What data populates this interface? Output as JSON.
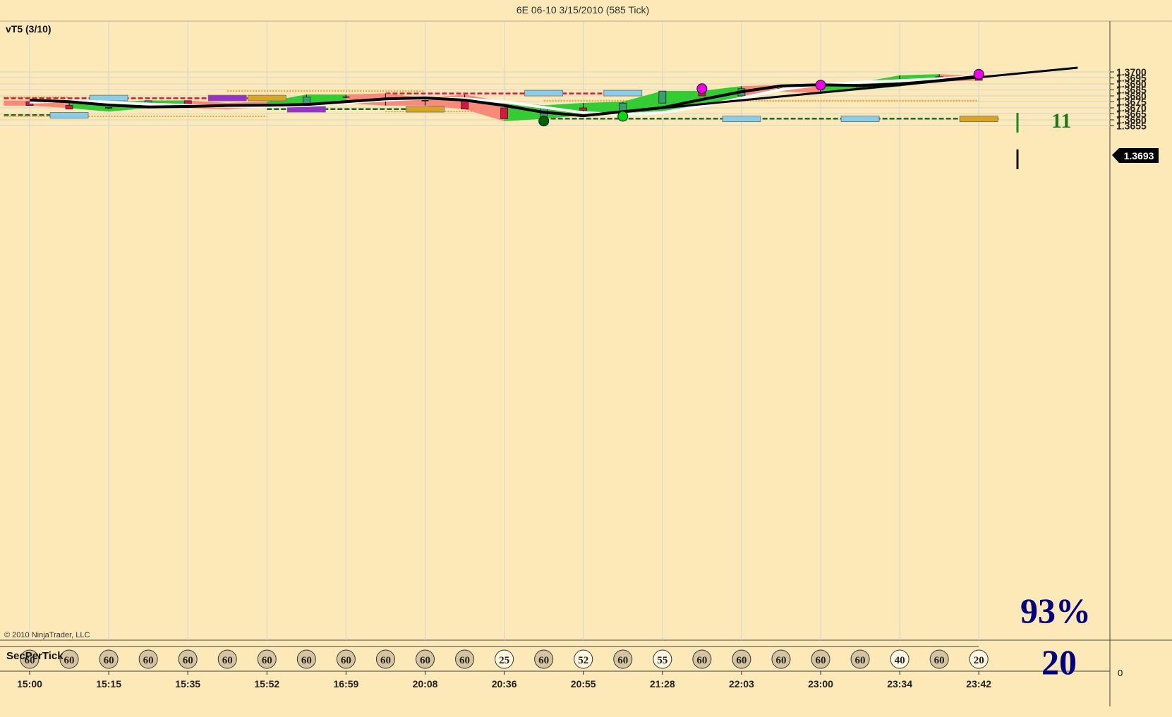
{
  "window": {
    "title": "6E 06-10  3/15/2010 (585 Tick)"
  },
  "panel": {
    "indicator_label": "vT5 (3/10)",
    "copyright": "© 2010 NinjaTrader, LLC",
    "subpanel_label": "SecPerTick",
    "subpanel_zero": "0",
    "last_price": "1.3693",
    "signal_count": "11",
    "percent": "93%",
    "sec_value": "20"
  },
  "colors": {
    "background": "#fde8b8",
    "bull_band": "#33cc33",
    "bear_band": "#fa8a78",
    "up_candle": "#3a9d76",
    "down_candle": "#d8163f",
    "fast_line": "#000000",
    "slow_line": "#ffffff",
    "trend_line": "#000000",
    "orange_level": "#e8a21a",
    "red_level": "#d8163f",
    "green_level": "#1f6b1f",
    "navy_text": "#000080",
    "signal_green": "#006400"
  },
  "chart_data": {
    "type": "candlestick",
    "title": "6E 06-10  3/15/2010 (585 Tick)",
    "price_axis": {
      "ylim": [
        1.36525,
        1.37035
      ],
      "ticks": [
        "1.3655",
        "1.3660",
        "1.3665",
        "1.3670",
        "1.3675",
        "1.3680",
        "1.3685",
        "1.3690",
        "1.3695",
        "1.3700"
      ]
    },
    "x_labels": [
      {
        "bar": 0,
        "label": "15:00"
      },
      {
        "bar": 2,
        "label": "15:15"
      },
      {
        "bar": 4,
        "label": "15:35"
      },
      {
        "bar": 6,
        "label": "15:52"
      },
      {
        "bar": 8,
        "label": "16:59"
      },
      {
        "bar": 10,
        "label": "20:08"
      },
      {
        "bar": 12,
        "label": "20:36"
      },
      {
        "bar": 14,
        "label": "20:55"
      },
      {
        "bar": 16,
        "label": "21:28"
      },
      {
        "bar": 18,
        "label": "22:03"
      },
      {
        "bar": 20,
        "label": "23:00"
      },
      {
        "bar": 22,
        "label": "23:34"
      },
      {
        "bar": 24,
        "label": "23:42"
      }
    ],
    "candles": [
      {
        "o": 1.3675,
        "h": 1.3675,
        "l": 1.3672,
        "c": 1.3672
      },
      {
        "o": 1.3672,
        "h": 1.3675,
        "l": 1.3669,
        "c": 1.3669
      },
      {
        "o": 1.3669,
        "h": 1.367,
        "l": 1.3669,
        "c": 1.367
      },
      {
        "o": 1.367,
        "h": 1.3676,
        "l": 1.367,
        "c": 1.3676
      },
      {
        "o": 1.3676,
        "h": 1.3676,
        "l": 1.3672,
        "c": 1.3672
      },
      {
        "o": 1.3672,
        "h": 1.3672,
        "l": 1.3672,
        "c": 1.3672
      },
      {
        "o": 1.3672,
        "h": 1.3672,
        "l": 1.3672,
        "c": 1.3672
      },
      {
        "o": 1.3672,
        "h": 1.3681,
        "l": 1.3672,
        "c": 1.3679
      },
      {
        "o": 1.3679,
        "h": 1.3681,
        "l": 1.3678,
        "c": 1.3678
      },
      {
        "o": 1.3678,
        "h": 1.3682,
        "l": 1.3672,
        "c": 1.3676
      },
      {
        "o": 1.3676,
        "h": 1.3678,
        "l": 1.3672,
        "c": 1.3676
      },
      {
        "o": 1.3676,
        "h": 1.3681,
        "l": 1.3669,
        "c": 1.3669
      },
      {
        "o": 1.367,
        "h": 1.367,
        "l": 1.3661,
        "c": 1.3661
      },
      {
        "o": 1.3661,
        "h": 1.367,
        "l": 1.3661,
        "c": 1.367
      },
      {
        "o": 1.367,
        "h": 1.3674,
        "l": 1.3664,
        "c": 1.3668
      },
      {
        "o": 1.3665,
        "h": 1.3675,
        "l": 1.3665,
        "c": 1.3674
      },
      {
        "o": 1.3674,
        "h": 1.3684,
        "l": 1.3674,
        "c": 1.3684
      },
      {
        "o": 1.3684,
        "h": 1.3684,
        "l": 1.368,
        "c": 1.368
      },
      {
        "o": 1.368,
        "h": 1.3688,
        "l": 1.3679,
        "c": 1.3686
      },
      {
        "o": 1.3686,
        "h": 1.3689,
        "l": 1.3684,
        "c": 1.3686
      },
      {
        "o": 1.3686,
        "h": 1.3686,
        "l": 1.3682,
        "c": 1.3685
      },
      {
        "o": 1.3686,
        "h": 1.3689,
        "l": 1.3685,
        "c": 1.3689
      },
      {
        "o": 1.3689,
        "h": 1.3697,
        "l": 1.3688,
        "c": 1.3693
      },
      {
        "o": 1.3693,
        "h": 1.3698,
        "l": 1.3692,
        "c": 1.3696
      },
      {
        "o": 1.3696,
        "h": 1.3696,
        "l": 1.3693,
        "c": 1.3693
      }
    ],
    "band": {
      "upper": [
        1.3676,
        1.3674,
        1.3675,
        1.3676,
        1.3676,
        1.3674,
        1.3675,
        1.3681,
        1.3681,
        1.3682,
        1.3678,
        1.3681,
        1.3675,
        1.3672,
        1.3674,
        1.3675,
        1.3684,
        1.3684,
        1.3688,
        1.3689,
        1.369,
        1.3691,
        1.3697,
        1.3698,
        1.3696
      ],
      "lower": [
        1.3672,
        1.367,
        1.3667,
        1.367,
        1.367,
        1.3669,
        1.3671,
        1.3672,
        1.3674,
        1.3672,
        1.3672,
        1.3669,
        1.3659,
        1.3661,
        1.3664,
        1.3664,
        1.3666,
        1.3671,
        1.3679,
        1.3684,
        1.3682,
        1.3685,
        1.3688,
        1.3692,
        1.3693
      ],
      "trend": [
        "bear",
        "bear",
        "bull",
        "bull",
        "bull",
        "bear",
        "bear",
        "bull",
        "bull",
        "bear",
        "bear",
        "bear",
        "bear",
        "bull",
        "bull",
        "bull",
        "bull",
        "bull",
        "bull",
        "bear",
        "bear",
        "bull",
        "bull",
        "bull",
        "bear"
      ]
    },
    "fast_ma": [
      1.36765,
      1.36751,
      1.36723,
      1.36707,
      1.36712,
      1.3672,
      1.36722,
      1.36728,
      1.36752,
      1.36775,
      1.36783,
      1.36765,
      1.3672,
      1.36663,
      1.36635,
      1.36668,
      1.36702,
      1.3677,
      1.36835,
      1.36883,
      1.36893,
      1.36886,
      1.36899,
      1.36927,
      1.36963
    ],
    "slow_ma": [
      1.36747,
      1.36757,
      1.36749,
      1.36732,
      1.3672,
      1.36713,
      1.36711,
      1.36719,
      1.36743,
      1.36765,
      1.3678,
      1.36776,
      1.3675,
      1.36705,
      1.3666,
      1.36644,
      1.36661,
      1.36714,
      1.36782,
      1.36853,
      1.36895,
      1.36913,
      1.36927,
      1.36942,
      1.36963
    ],
    "trend_line": [
      {
        "bar": 14,
        "price": 1.36635
      },
      {
        "bar": 26.5,
        "price": 1.37035
      }
    ],
    "dots": [
      {
        "bar": 13,
        "price": 1.3659,
        "color": "#006400"
      },
      {
        "bar": 15,
        "price": 1.3663,
        "color": "#00dd00"
      },
      {
        "bar": 17,
        "price": 1.3686,
        "color": "#ee00ee"
      },
      {
        "bar": 20,
        "price": 1.3689,
        "color": "#ee00ee"
      },
      {
        "bar": 24,
        "price": 1.3698,
        "color": "#ee00ee"
      }
    ],
    "levels": [
      {
        "from": -0.65,
        "to": 1.0,
        "price": 1.36789,
        "style": "dotted",
        "color": "#e8a21a"
      },
      {
        "from": -0.65,
        "to": 6.0,
        "price": 1.3678,
        "style": "dashed",
        "color": "#d8163f"
      },
      {
        "from": 5.0,
        "to": 10.0,
        "price": 1.3684,
        "style": "dotted",
        "color": "#e8a21a"
      },
      {
        "from": 9.0,
        "to": 15.0,
        "price": 1.3682,
        "style": "dashed",
        "color": "#d8163f"
      },
      {
        "from": 13.0,
        "to": 24.0,
        "price": 1.3676,
        "style": "dotted",
        "color": "#e8a21a"
      },
      {
        "from": 6.0,
        "to": 10.0,
        "price": 1.3669,
        "style": "dashed",
        "color": "#1f6b1f"
      },
      {
        "from": 9.0,
        "to": 15.0,
        "price": 1.3667,
        "style": "dotted",
        "color": "#e8a21a"
      },
      {
        "from": -0.65,
        "to": 1.0,
        "price": 1.3664,
        "style": "dashed",
        "color": "#1f6b1f"
      },
      {
        "from": -0.65,
        "to": 6.0,
        "price": 1.3663,
        "style": "dotted",
        "color": "#e8a21a"
      },
      {
        "from": 13.0,
        "to": 24.5,
        "price": 1.3661,
        "style": "dashed",
        "color": "#1f6b1f"
      }
    ],
    "markers": [
      {
        "bar": 2,
        "price": 1.36782,
        "color": "#87ceeb"
      },
      {
        "bar": 5,
        "price": 1.36782,
        "color": "#9932cc"
      },
      {
        "bar": 6,
        "price": 1.36782,
        "color": "#daa520"
      },
      {
        "bar": 7,
        "price": 1.36688,
        "color": "#9932cc"
      },
      {
        "bar": 10,
        "price": 1.36688,
        "color": "#daa520"
      },
      {
        "bar": 1,
        "price": 1.36638,
        "color": "#87ceeb"
      },
      {
        "bar": 13,
        "price": 1.36823,
        "color": "#87ceeb"
      },
      {
        "bar": 15,
        "price": 1.36823,
        "color": "#87ceeb"
      },
      {
        "bar": 18,
        "price": 1.36608,
        "color": "#87ceeb"
      },
      {
        "bar": 21,
        "price": 1.36608,
        "color": "#87ceeb"
      },
      {
        "bar": 24,
        "price": 1.36608,
        "color": "#daa520"
      }
    ],
    "sec_per_tick": [
      60,
      60,
      60,
      60,
      60,
      60,
      60,
      60,
      60,
      60,
      60,
      60,
      25,
      60,
      52,
      60,
      55,
      60,
      60,
      60,
      60,
      60,
      40,
      60,
      20
    ]
  }
}
